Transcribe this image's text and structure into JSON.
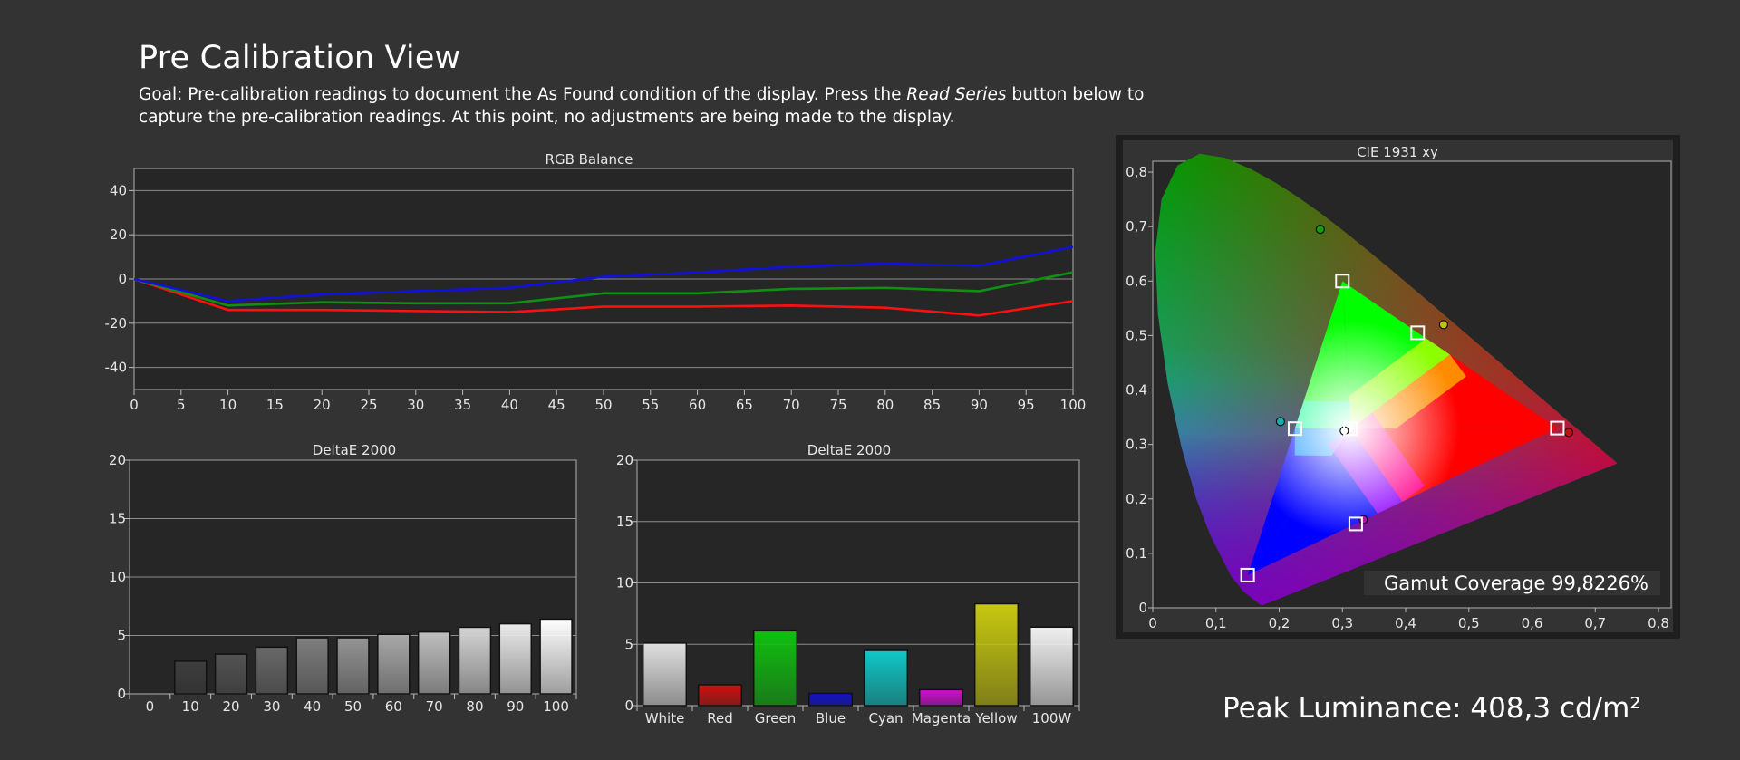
{
  "page": {
    "title": "Pre Calibration View",
    "goal_part1": "Goal: Pre-calibration readings to document the As Found condition of the display. Press the ",
    "goal_emphasis": "Read Series",
    "goal_part2": " button below to capture the pre-calibration readings. At this point, no adjustments are being made to the display.",
    "peak_luminance": "Peak Luminance: 408,3 cd/m²"
  },
  "colors": {
    "background": "#333333",
    "plot_bg": "#262626",
    "red": "#ff0000",
    "green": "#109010",
    "blue": "#1010e0"
  },
  "chart_data": [
    {
      "type": "line",
      "title": "RGB Balance",
      "x": [
        0,
        10,
        20,
        30,
        40,
        50,
        60,
        70,
        80,
        90,
        100
      ],
      "xticks": [
        0,
        5,
        10,
        15,
        20,
        25,
        30,
        35,
        40,
        45,
        50,
        55,
        60,
        65,
        70,
        75,
        80,
        85,
        90,
        95,
        100
      ],
      "yticks": [
        40,
        20,
        0,
        -20,
        -40
      ],
      "xlim": [
        0,
        100
      ],
      "ylim": [
        -50,
        50
      ],
      "grid": true,
      "series": [
        {
          "color": "#ff1010",
          "values": [
            0,
            -14,
            -14,
            -14.5,
            -15,
            -12.5,
            -12.5,
            -12,
            -13,
            -16.5,
            -10
          ]
        },
        {
          "color": "#109010",
          "values": [
            0,
            -12,
            -10.5,
            -11,
            -11,
            -6.5,
            -6.5,
            -4.5,
            -4,
            -5.5,
            3
          ]
        },
        {
          "color": "#1010e0",
          "values": [
            0,
            -10,
            -7,
            -5.5,
            -4,
            1,
            3,
            5.5,
            7,
            6,
            14.5
          ]
        }
      ]
    },
    {
      "type": "bar",
      "title": "DeltaE 2000",
      "categories": [
        "0",
        "10",
        "20",
        "30",
        "40",
        "50",
        "60",
        "70",
        "80",
        "90",
        "100"
      ],
      "values": [
        0,
        2.8,
        3.4,
        4.0,
        4.8,
        4.8,
        5.1,
        5.3,
        5.7,
        6.0,
        6.4
      ],
      "ylim": [
        0,
        20
      ],
      "yticks": [
        0,
        5,
        10,
        15,
        20
      ],
      "grid": true
    },
    {
      "type": "bar",
      "title": "DeltaE 2000",
      "categories": [
        "White",
        "Red",
        "Green",
        "Blue",
        "Cyan",
        "Magenta",
        "Yellow",
        "100W"
      ],
      "values": [
        5.1,
        1.7,
        6.1,
        1.0,
        4.5,
        1.3,
        8.3,
        6.4
      ],
      "colors": [
        "#e0e0e0",
        "#d01010",
        "#10c010",
        "#1010d0",
        "#10c8c8",
        "#d010d0",
        "#c8c810",
        "#f0f0f0"
      ],
      "ylim": [
        0,
        20
      ],
      "yticks": [
        0,
        5,
        10,
        15,
        20
      ],
      "grid": true
    },
    {
      "type": "scatter",
      "title": "CIE 1931 xy",
      "xlim": [
        0,
        0.82
      ],
      "ylim": [
        0,
        0.82
      ],
      "xticks": [
        "0",
        "0,1",
        "0,2",
        "0,3",
        "0,4",
        "0,5",
        "0,6",
        "0,7",
        "0,8"
      ],
      "yticks": [
        "0",
        "0,1",
        "0,2",
        "0,3",
        "0,4",
        "0,5",
        "0,6",
        "0,7",
        "0,8"
      ],
      "targets": [
        {
          "x": 0.64,
          "y": 0.33
        },
        {
          "x": 0.3,
          "y": 0.6
        },
        {
          "x": 0.15,
          "y": 0.06
        },
        {
          "x": 0.225,
          "y": 0.329
        },
        {
          "x": 0.321,
          "y": 0.154
        },
        {
          "x": 0.419,
          "y": 0.505
        },
        {
          "x": 0.3127,
          "y": 0.329
        }
      ],
      "measured": [
        {
          "x": 0.658,
          "y": 0.322,
          "color": "#c01010"
        },
        {
          "x": 0.265,
          "y": 0.695,
          "color": "#10a010"
        },
        {
          "x": 0.202,
          "y": 0.342,
          "color": "#10b0b0"
        },
        {
          "x": 0.333,
          "y": 0.162,
          "color": "#b010b0"
        },
        {
          "x": 0.46,
          "y": 0.52,
          "color": "#c0c010"
        },
        {
          "x": 0.303,
          "y": 0.325,
          "color": "#ffffff"
        }
      ],
      "annotation": "Gamut Coverage 99,8226%"
    }
  ]
}
